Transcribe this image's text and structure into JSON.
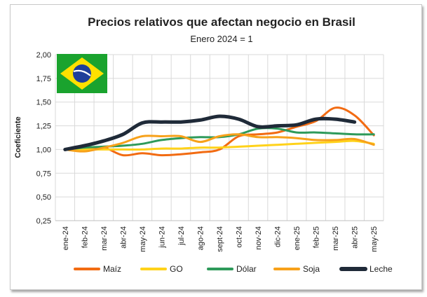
{
  "chart_data": {
    "type": "line",
    "title": "Precios relativos que afectan negocio en Brasil",
    "subtitle": "Enero 2024 = 1",
    "ylabel": "Coeficiente",
    "xlabel": "",
    "ylim": [
      0.25,
      2.0
    ],
    "yticks": [
      "0,25",
      "0,50",
      "0,75",
      "1,00",
      "1,25",
      "1,50",
      "1,75",
      "2,00"
    ],
    "ytick_values": [
      0.25,
      0.5,
      0.75,
      1.0,
      1.25,
      1.5,
      1.75,
      2.0
    ],
    "categories": [
      "ene-24",
      "feb-24",
      "mar-24",
      "abr-24",
      "may-24",
      "jun-24",
      "jul-24",
      "ago-24",
      "sept-24",
      "oct-24",
      "nov-24",
      "dic-24",
      "ene-25",
      "feb-25",
      "mar-25",
      "abr-25",
      "may-25"
    ],
    "grid": true,
    "legend_position": "bottom",
    "series": [
      {
        "name": "Maíz",
        "color": "#f26b12",
        "width": 3,
        "values": [
          1.0,
          1.0,
          1.02,
          0.94,
          0.96,
          0.94,
          0.95,
          0.97,
          1.0,
          1.14,
          1.16,
          1.18,
          1.24,
          1.3,
          1.44,
          1.36,
          1.15
        ]
      },
      {
        "name": "GO",
        "color": "#ffd21a",
        "width": 3,
        "values": [
          1.0,
          1.0,
          1.0,
          1.0,
          1.0,
          1.01,
          1.01,
          1.02,
          1.02,
          1.03,
          1.04,
          1.05,
          1.06,
          1.07,
          1.08,
          1.09,
          1.06
        ]
      },
      {
        "name": "Dólar",
        "color": "#2e9a5a",
        "width": 3,
        "values": [
          1.0,
          1.02,
          1.03,
          1.04,
          1.06,
          1.1,
          1.12,
          1.13,
          1.13,
          1.16,
          1.22,
          1.22,
          1.18,
          1.18,
          1.17,
          1.16,
          1.16
        ]
      },
      {
        "name": "Soja",
        "color": "#f7a11a",
        "width": 3,
        "values": [
          1.0,
          0.98,
          1.02,
          1.07,
          1.14,
          1.14,
          1.14,
          1.08,
          1.14,
          1.16,
          1.13,
          1.13,
          1.12,
          1.1,
          1.1,
          1.11,
          1.05
        ]
      },
      {
        "name": "Leche",
        "color": "#1f2a38",
        "width": 5,
        "values": [
          1.0,
          1.04,
          1.09,
          1.16,
          1.28,
          1.29,
          1.29,
          1.31,
          1.35,
          1.32,
          1.24,
          1.25,
          1.26,
          1.32,
          1.32,
          1.29,
          null
        ]
      }
    ]
  },
  "decor": {
    "flag_icon": "brazil-flag-icon"
  }
}
